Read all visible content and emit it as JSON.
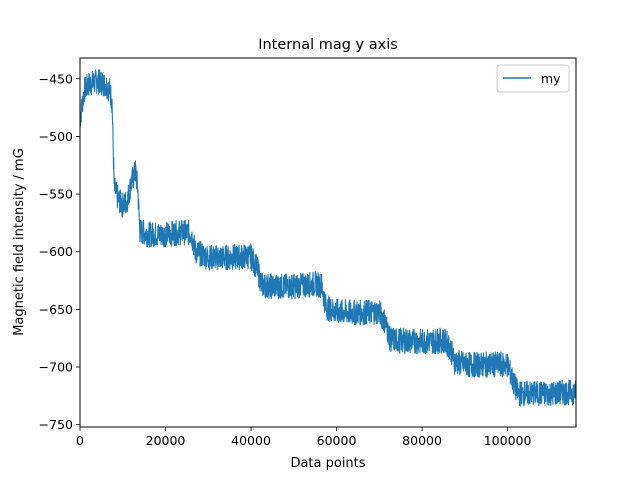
{
  "chart_data": {
    "type": "line",
    "title": "Internal mag y axis",
    "xlabel": "Data points",
    "ylabel": "Magnetic field intensity / mG",
    "xlim": [
      0,
      116000
    ],
    "ylim": [
      -752,
      -432
    ],
    "xticks": [
      0,
      20000,
      40000,
      60000,
      80000,
      100000
    ],
    "xtick_labels": [
      "0",
      "20000",
      "40000",
      "60000",
      "80000",
      "100000"
    ],
    "yticks": [
      -450,
      -500,
      -550,
      -600,
      -650,
      -700,
      -750
    ],
    "ytick_labels": [
      "−450",
      "−500",
      "−550",
      "−600",
      "−650",
      "−700",
      "−750"
    ],
    "grid": false,
    "legend": {
      "position": "top-right",
      "entries": [
        "my"
      ]
    },
    "series": [
      {
        "name": "my",
        "color": "#1f77b4",
        "x": [
          0,
          1000,
          2000,
          4000,
          6000,
          7000,
          7500,
          8000,
          9000,
          10000,
          11000,
          12000,
          13000,
          13500,
          14000,
          16000,
          20000,
          24000,
          26000,
          27000,
          30000,
          35000,
          40000,
          41500,
          42500,
          45000,
          50000,
          55000,
          56500,
          57500,
          60000,
          65000,
          70000,
          71500,
          72500,
          75000,
          80000,
          85000,
          86500,
          87500,
          90000,
          95000,
          100000,
          101500,
          102500,
          105000,
          110000,
          114000,
          116000
        ],
        "values": [
          -485,
          -460,
          -455,
          -452,
          -455,
          -460,
          -470,
          -545,
          -555,
          -560,
          -556,
          -540,
          -530,
          -545,
          -582,
          -585,
          -585,
          -583,
          -584,
          -600,
          -605,
          -605,
          -604,
          -615,
          -629,
          -630,
          -630,
          -628,
          -629,
          -648,
          -652,
          -653,
          -652,
          -662,
          -676,
          -677,
          -678,
          -677,
          -682,
          -695,
          -698,
          -698,
          -698,
          -715,
          -723,
          -723,
          -723,
          -722,
          -722
        ],
        "noise_band": 10
      }
    ]
  }
}
